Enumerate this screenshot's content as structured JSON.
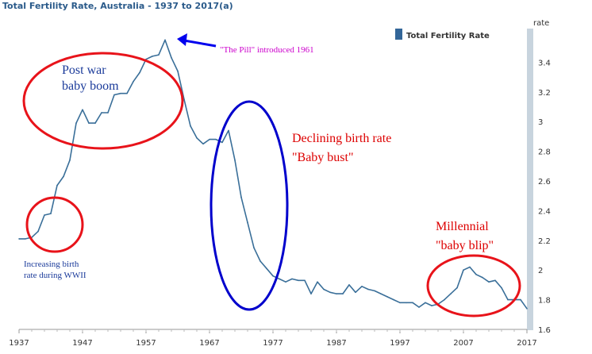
{
  "chart_data": {
    "type": "line",
    "title": "Total Fertility Rate, Australia - 1937 to 2017(a)",
    "ylabel": "rate",
    "legend": {
      "label": "Total Fertility Rate",
      "color": "#336699",
      "position": "top-right"
    },
    "xlim": [
      1937,
      2017
    ],
    "ylim": [
      1.6,
      3.6
    ],
    "x_ticks": [
      "1937",
      "1947",
      "1957",
      "1967",
      "1977",
      "1987",
      "1997",
      "2007",
      "2017"
    ],
    "y_ticks": [
      "1.6",
      "1.8",
      "2",
      "2.2",
      "2.4",
      "2.6",
      "2.8",
      "3",
      "3.2",
      "3.4"
    ],
    "grid": false,
    "line_color": "#3a6f99",
    "series": [
      {
        "name": "Total Fertility Rate",
        "x": [
          1937,
          1938,
          1939,
          1940,
          1941,
          1942,
          1943,
          1944,
          1945,
          1946,
          1947,
          1948,
          1949,
          1950,
          1951,
          1952,
          1953,
          1954,
          1955,
          1956,
          1957,
          1958,
          1959,
          1960,
          1961,
          1962,
          1963,
          1964,
          1965,
          1966,
          1967,
          1968,
          1969,
          1970,
          1971,
          1972,
          1973,
          1974,
          1975,
          1976,
          1977,
          1978,
          1979,
          1980,
          1981,
          1982,
          1983,
          1984,
          1985,
          1986,
          1987,
          1988,
          1989,
          1990,
          1991,
          1992,
          1993,
          1994,
          1995,
          1996,
          1997,
          1998,
          1999,
          2000,
          2001,
          2002,
          2003,
          2004,
          2005,
          2006,
          2007,
          2008,
          2009,
          2010,
          2011,
          2012,
          2013,
          2014,
          2015,
          2016,
          2017
        ],
        "y": [
          2.21,
          2.21,
          2.22,
          2.26,
          2.37,
          2.38,
          2.57,
          2.63,
          2.74,
          2.99,
          3.08,
          2.99,
          2.99,
          3.06,
          3.06,
          3.18,
          3.19,
          3.19,
          3.27,
          3.33,
          3.42,
          3.44,
          3.45,
          3.55,
          3.43,
          3.34,
          3.15,
          2.97,
          2.89,
          2.85,
          2.88,
          2.88,
          2.86,
          2.94,
          2.74,
          2.49,
          2.32,
          2.15,
          2.06,
          2.01,
          1.96,
          1.94,
          1.92,
          1.94,
          1.93,
          1.93,
          1.84,
          1.92,
          1.87,
          1.85,
          1.84,
          1.84,
          1.9,
          1.85,
          1.89,
          1.87,
          1.86,
          1.84,
          1.82,
          1.8,
          1.78,
          1.78,
          1.78,
          1.75,
          1.78,
          1.76,
          1.77,
          1.8,
          1.84,
          1.88,
          2.0,
          2.02,
          1.97,
          1.95,
          1.92,
          1.93,
          1.88,
          1.8,
          1.8,
          1.8,
          1.74
        ]
      }
    ],
    "annotations": [
      {
        "text": "\"The Pill\" introduced 1961",
        "color": "#cc00cc"
      },
      {
        "lines": [
          "Post war",
          "baby boom"
        ],
        "color": "#1a3a9a"
      },
      {
        "lines": [
          "Increasing birth",
          "rate during WWII"
        ],
        "color": "#1a3a9a"
      },
      {
        "lines": [
          "Declining birth rate",
          "\"Baby bust\""
        ],
        "color": "#dd0000"
      },
      {
        "lines": [
          "Millennial",
          "\"baby blip\""
        ],
        "color": "#dd0000"
      }
    ],
    "ellipse_colors": {
      "red": "#e8131a",
      "blue": "#0000cc"
    },
    "arrow_color": "#0000ee",
    "axis_strip_color": "#c8d4de"
  }
}
